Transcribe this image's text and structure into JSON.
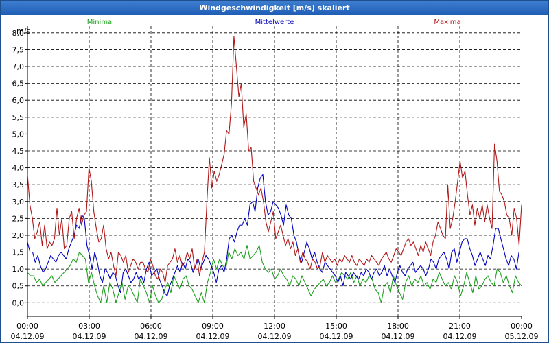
{
  "window": {
    "title": "Windgeschwindigkeit [m/s] skaliert"
  },
  "colors": {
    "min": "#1ea01e",
    "mean": "#0000c0",
    "max": "#b01818",
    "grid": "#000000"
  },
  "chart_data": {
    "type": "line",
    "title": "Windgeschwindigkeit [m/s] skaliert",
    "ylabel": "m/s",
    "xlabel": "",
    "ylim": [
      -0.4,
      8.2
    ],
    "yticks": [
      "0,0",
      "0,5",
      "1,0",
      "1,5",
      "2,0",
      "2,5",
      "3,0",
      "3,5",
      "4,0",
      "4,5",
      "5,0",
      "5,5",
      "6,0",
      "6,5",
      "7,0",
      "7,5",
      "8,0"
    ],
    "xlim_hours": [
      0,
      24
    ],
    "xticks": [
      {
        "time": "00:00",
        "date": "04.12.09"
      },
      {
        "time": "03:00",
        "date": "04.12.09"
      },
      {
        "time": "06:00",
        "date": "04.12.09"
      },
      {
        "time": "09:00",
        "date": "04.12.09"
      },
      {
        "time": "12:00",
        "date": "04.12.09"
      },
      {
        "time": "15:00",
        "date": "04.12.09"
      },
      {
        "time": "18:00",
        "date": "04.12.09"
      },
      {
        "time": "21:00",
        "date": "04.12.09"
      },
      {
        "time": "00:00",
        "date": "05.12.09"
      }
    ],
    "grid": true,
    "series": [
      {
        "name": "Minima",
        "color": "#1ea01e",
        "legend_position": "left",
        "values": [
          0.9,
          0.8,
          0.8,
          0.6,
          0.7,
          0.5,
          0.6,
          0.7,
          0.8,
          0.6,
          0.7,
          0.8,
          0.9,
          1.0,
          1.1,
          1.3,
          1.2,
          1.5,
          1.4,
          1.3,
          0.6,
          0.9,
          0.5,
          0.2,
          0.0,
          0.5,
          0.0,
          0.6,
          0.4,
          0.0,
          0.3,
          0.6,
          0.1,
          0.5,
          0.4,
          0.2,
          0.0,
          0.7,
          0.5,
          0.3,
          0.0,
          0.5,
          0.2,
          0.0,
          0.1,
          0.4,
          0.6,
          0.3,
          0.8,
          0.6,
          0.4,
          0.7,
          0.8,
          0.5,
          0.4,
          0.2,
          0.0,
          0.3,
          0.0,
          0.6,
          0.9,
          1.3,
          1.0,
          1.3,
          1.1,
          1.0,
          1.5,
          1.3,
          1.6,
          1.4,
          1.5,
          1.3,
          1.7,
          1.3,
          1.4,
          1.5,
          1.7,
          1.2,
          1.0,
          0.9,
          1.0,
          0.7,
          0.8,
          1.0,
          0.8,
          0.7,
          0.5,
          0.8,
          0.7,
          0.5,
          0.8,
          0.6,
          0.4,
          0.2,
          0.4,
          0.5,
          0.6,
          0.7,
          0.5,
          0.6,
          0.8,
          0.6,
          0.7,
          0.9,
          0.8,
          0.7,
          0.9,
          0.6,
          0.8,
          0.5,
          0.7,
          0.6,
          0.8,
          0.7,
          0.4,
          0.3,
          0.0,
          0.5,
          0.6,
          0.3,
          0.8,
          0.5,
          0.3,
          0.1,
          0.6,
          0.8,
          0.5,
          0.7,
          0.6,
          0.8,
          0.5,
          0.6,
          0.4,
          0.7,
          0.6,
          0.9,
          0.7,
          0.5,
          0.6,
          0.4,
          0.8,
          0.6,
          0.2,
          0.5,
          0.9,
          0.6,
          0.3,
          0.8,
          0.4,
          0.5,
          0.7,
          0.8,
          0.6,
          0.5,
          1.0,
          0.9,
          0.6,
          0.8,
          0.5,
          0.3,
          0.8,
          0.6,
          0.5
        ]
      },
      {
        "name": "Mittelwerte",
        "color": "#0000c0",
        "legend_position": "center",
        "values": [
          1.8,
          1.5,
          1.5,
          1.2,
          1.4,
          1.1,
          0.9,
          1.0,
          1.2,
          1.4,
          1.3,
          1.2,
          1.4,
          1.5,
          1.4,
          1.3,
          1.6,
          1.8,
          2.0,
          2.3,
          2.2,
          2.6,
          2.5,
          1.7,
          1.4,
          1.0,
          1.5,
          1.2,
          0.8,
          0.6,
          1.0,
          0.9,
          0.7,
          0.9,
          0.8,
          0.5,
          0.3,
          0.9,
          1.0,
          0.8,
          0.6,
          0.7,
          0.9,
          0.7,
          0.8,
          0.6,
          1.0,
          1.2,
          0.8,
          0.9,
          1.0,
          0.7,
          0.5,
          0.3,
          0.2,
          0.5,
          0.7,
          0.9,
          1.1,
          0.9,
          1.2,
          1.0,
          1.3,
          1.2,
          0.9,
          1.1,
          1.3,
          1.0,
          1.2,
          1.4,
          1.3,
          1.1,
          0.9,
          0.6,
          1.0,
          1.1,
          0.9,
          1.3,
          1.9,
          2.0,
          1.8,
          2.1,
          2.3,
          2.3,
          2.5,
          2.3,
          2.9,
          3.0,
          2.7,
          3.4,
          3.7,
          3.8,
          3.0,
          2.6,
          2.7,
          3.0,
          2.9,
          2.8,
          2.6,
          2.3,
          2.9,
          2.6,
          2.5,
          2.0,
          1.8,
          1.4,
          1.2,
          1.5,
          1.8,
          1.6,
          1.3,
          1.5,
          1.2,
          1.0,
          0.9,
          1.2,
          1.1,
          1.0,
          0.9,
          0.8,
          0.6,
          0.8,
          0.5,
          0.9,
          0.8,
          0.7,
          0.9,
          0.8,
          0.7,
          0.9,
          0.8,
          1.0,
          0.9,
          0.7,
          0.9,
          1.0,
          0.8,
          0.9,
          1.1,
          0.8,
          1.0,
          0.8,
          0.6,
          0.9,
          1.1,
          0.9,
          0.8,
          1.0,
          1.1,
          1.2,
          0.9,
          1.0,
          1.1,
          1.0,
          0.8,
          1.0,
          1.3,
          1.2,
          1.0,
          1.3,
          1.4,
          1.5,
          1.3,
          1.0,
          1.5,
          1.6,
          1.2,
          1.5,
          1.8,
          1.9,
          1.9,
          1.6,
          1.4,
          1.1,
          1.3,
          1.5,
          1.3,
          1.1,
          1.4,
          1.3,
          1.7,
          2.2,
          2.2,
          1.9,
          1.6,
          1.3,
          1.1,
          1.4,
          1.3,
          1.0,
          1.5,
          1.5
        ]
      },
      {
        "name": "Maxima",
        "color": "#b01818",
        "legend_position": "right",
        "values": [
          3.8,
          2.9,
          2.5,
          1.9,
          2.1,
          2.4,
          1.7,
          2.3,
          1.6,
          1.8,
          1.7,
          1.9,
          2.8,
          2.0,
          2.5,
          1.6,
          1.7,
          2.5,
          2.7,
          1.9,
          2.5,
          2.8,
          2.3,
          2.6,
          2.7,
          4.0,
          3.6,
          2.7,
          2.2,
          1.8,
          1.9,
          2.3,
          1.6,
          1.3,
          1.5,
          1.1,
          0.8,
          1.5,
          1.4,
          1.2,
          1.4,
          0.9,
          1.1,
          1.3,
          1.2,
          1.0,
          1.2,
          1.2,
          1.0,
          0.9,
          1.3,
          1.1,
          0.8,
          0.7,
          1.0,
          0.9,
          0.6,
          1.1,
          1.2,
          1.3,
          1.6,
          1.2,
          1.4,
          1.1,
          1.2,
          1.5,
          1.3,
          1.6,
          1.0,
          1.3,
          0.8,
          1.2,
          1.5,
          3.0,
          4.3,
          3.4,
          3.9,
          3.6,
          3.8,
          4.1,
          4.4,
          5.1,
          5.0,
          5.9,
          7.9,
          7.0,
          6.1,
          6.5,
          5.2,
          5.6,
          4.5,
          4.6,
          3.6,
          3.4,
          3.2,
          3.4,
          3.0,
          2.4,
          2.1,
          2.4,
          2.7,
          1.9,
          2.1,
          2.3,
          2.0,
          1.7,
          1.9,
          1.6,
          1.8,
          1.4,
          1.6,
          1.2,
          1.5,
          1.3,
          1.2,
          1.0,
          1.3,
          1.2,
          1.0,
          1.1,
          1.5,
          1.2,
          1.4,
          1.3,
          1.2,
          1.3,
          1.1,
          1.3,
          1.2,
          1.4,
          1.3,
          1.2,
          1.4,
          1.2,
          1.1,
          1.3,
          1.2,
          1.1,
          1.3,
          1.2,
          1.4,
          1.3,
          1.2,
          1.1,
          1.3,
          1.4,
          1.5,
          1.3,
          1.2,
          1.4,
          1.6,
          1.5,
          1.4,
          1.6,
          1.8,
          1.9,
          1.7,
          1.8,
          1.6,
          1.4,
          1.7,
          1.5,
          1.8,
          1.6,
          1.4,
          1.8,
          2.0,
          2.4,
          2.2,
          2.0,
          1.9,
          3.5,
          2.2,
          2.5,
          3.0,
          3.6,
          4.2,
          3.7,
          3.9,
          3.2,
          2.6,
          2.9,
          2.3,
          2.8,
          2.5,
          2.9,
          2.4,
          2.9,
          2.5,
          2.2,
          4.7,
          4.2,
          3.3,
          3.2,
          3.0,
          2.6,
          2.5,
          2.0,
          2.8,
          2.5,
          1.7,
          2.9
        ]
      }
    ]
  }
}
